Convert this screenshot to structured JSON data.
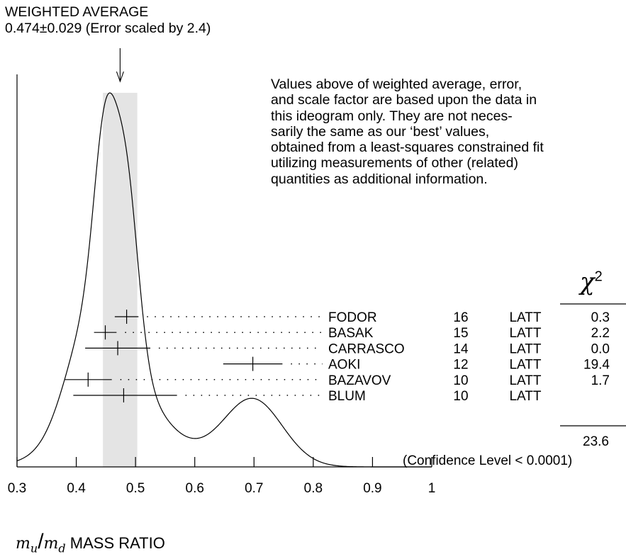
{
  "weighted_average": {
    "title": "WEIGHTED AVERAGE",
    "value_text": "0.474±0.029 (Error scaled by 2.4)",
    "mean": 0.474,
    "error": 0.029,
    "scale_factor": 2.4
  },
  "note_lines": [
    "Values above of weighted average, error,",
    "and scale factor are based upon the data in",
    "this ideogram only.  They are not neces-",
    "sarily the same as our ‘best’ values,",
    "obtained from a least-squares constrained fit",
    "utilizing measurements of other (related)",
    "quantities as additional information."
  ],
  "chi2_header": "χ",
  "chi2_header_exp": "2",
  "chi2_total": "23.6",
  "confidence_level": "(Confidence Level < 0.0001)",
  "xlabel_text": "MASS RATIO",
  "xlabel_num": "m",
  "xlabel_num_sub": "u",
  "xlabel_den": "m",
  "xlabel_den_sub": "d",
  "chart_data": {
    "type": "scatter",
    "xlim": [
      0.3,
      1.0
    ],
    "x_ticks": [
      "0.3",
      "0.4",
      "0.5",
      "0.6",
      "0.7",
      "0.8",
      "0.9",
      "1"
    ],
    "band": [
      0.445,
      0.503
    ],
    "measurements": [
      {
        "author": "FODOR",
        "year": "16",
        "tech": "LATT",
        "value": 0.485,
        "low": 0.465,
        "high": 0.505,
        "chi2": "0.3"
      },
      {
        "author": "BASAK",
        "year": "15",
        "tech": "LATT",
        "value": 0.449,
        "low": 0.43,
        "high": 0.468,
        "chi2": "2.2"
      },
      {
        "author": "CARRASCO",
        "year": "14",
        "tech": "LATT",
        "value": 0.47,
        "low": 0.415,
        "high": 0.525,
        "chi2": "0.0"
      },
      {
        "author": "AOKI",
        "year": "12",
        "tech": "LATT",
        "value": 0.698,
        "low": 0.648,
        "high": 0.748,
        "chi2": "19.4"
      },
      {
        "author": "BAZAVOV",
        "year": "10",
        "tech": "LATT",
        "value": 0.42,
        "low": 0.38,
        "high": 0.46,
        "chi2": "1.7"
      },
      {
        "author": "BLUM",
        "year": "10",
        "tech": "LATT",
        "value": 0.48,
        "low": 0.395,
        "high": 0.57,
        "chi2": ""
      }
    ]
  }
}
